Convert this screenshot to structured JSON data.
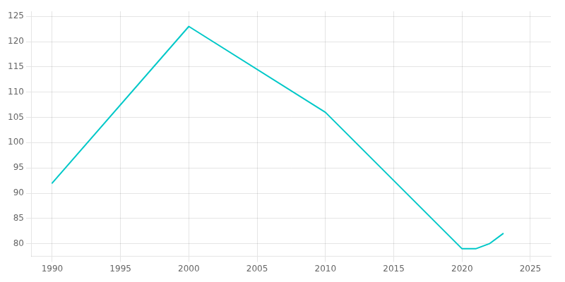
{
  "chart_data": {
    "type": "line",
    "x": [
      1990,
      2000,
      2010,
      2020,
      2021,
      2022,
      2023
    ],
    "values": [
      92,
      123,
      106,
      79,
      79,
      80,
      82
    ],
    "color": "#00C8C8",
    "xlim": [
      1988.5,
      2026.5
    ],
    "xticks": [
      1990,
      1995,
      2000,
      2005,
      2010,
      2015,
      2020,
      2025
    ],
    "ylim": [
      77.5,
      126
    ],
    "yticks": [
      80,
      85,
      90,
      95,
      100,
      105,
      110,
      115,
      120,
      125
    ],
    "grid": true
  }
}
